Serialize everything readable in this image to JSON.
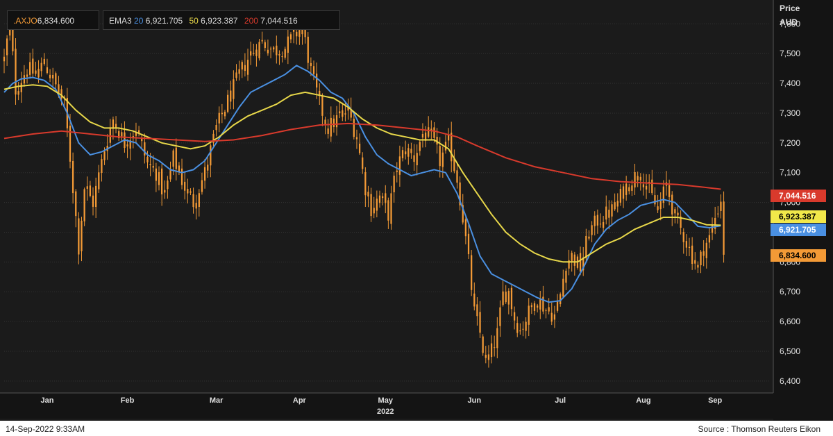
{
  "legend": {
    "ticker": ".AXJO",
    "ticker_value": "6,834.600",
    "ema_label": "EMA3",
    "periods": [
      {
        "period": "20",
        "value": "6,921.705",
        "color": "#4a90e2"
      },
      {
        "period": "50",
        "value": "6,923.387",
        "color": "#e8d84a"
      },
      {
        "period": "200",
        "value": "7,044.516",
        "color": "#d93a2c"
      }
    ]
  },
  "axis": {
    "title": "Price",
    "unit": "AUD"
  },
  "footer": {
    "timestamp": "14-Sep-2022 9:33AM",
    "source": "Source : Thomson Reuters Eikon"
  },
  "chart_data": {
    "type": "candlestick",
    "x_range": [
      0,
      262
    ],
    "y_range": [
      6360,
      7680
    ],
    "y_ticks": [
      {
        "value": 6400,
        "label": "6,400"
      },
      {
        "value": 6500,
        "label": "6,500"
      },
      {
        "value": 6600,
        "label": "6,600"
      },
      {
        "value": 6700,
        "label": "6,700"
      },
      {
        "value": 6800,
        "label": "6,800"
      },
      {
        "value": 6900,
        "label": "6,900"
      },
      {
        "value": 7000,
        "label": "7,000"
      },
      {
        "value": 7100,
        "label": "7,100"
      },
      {
        "value": 7200,
        "label": "7,200"
      },
      {
        "value": 7300,
        "label": "7,300"
      },
      {
        "value": 7400,
        "label": "7,400"
      },
      {
        "value": 7500,
        "label": "7,500"
      },
      {
        "value": 7600,
        "label": "7,600"
      }
    ],
    "x_ticks": [
      {
        "label": "Jan",
        "x": 15
      },
      {
        "label": "Feb",
        "x": 43
      },
      {
        "label": "Mar",
        "x": 74
      },
      {
        "label": "Apr",
        "x": 103
      },
      {
        "label": "May",
        "x": 133
      },
      {
        "label": "Jun",
        "x": 164
      },
      {
        "label": "Jul",
        "x": 194
      },
      {
        "label": "Aug",
        "x": 223
      },
      {
        "label": "Sep",
        "x": 248
      }
    ],
    "year_label": "2022",
    "price_anchors": [
      [
        0,
        7480
      ],
      [
        2,
        7600
      ],
      [
        4,
        7380
      ],
      [
        8,
        7450
      ],
      [
        11,
        7430
      ],
      [
        14,
        7470
      ],
      [
        18,
        7390
      ],
      [
        21,
        7330
      ],
      [
        23,
        7150
      ],
      [
        26,
        6850
      ],
      [
        28,
        7050
      ],
      [
        31,
        7000
      ],
      [
        35,
        7180
      ],
      [
        38,
        7280
      ],
      [
        42,
        7200
      ],
      [
        46,
        7250
      ],
      [
        50,
        7130
      ],
      [
        53,
        7100
      ],
      [
        56,
        7020
      ],
      [
        59,
        7150
      ],
      [
        63,
        7050
      ],
      [
        66,
        7000
      ],
      [
        70,
        7100
      ],
      [
        74,
        7250
      ],
      [
        78,
        7340
      ],
      [
        82,
        7430
      ],
      [
        86,
        7500
      ],
      [
        90,
        7540
      ],
      [
        94,
        7510
      ],
      [
        98,
        7520
      ],
      [
        101,
        7560
      ],
      [
        104,
        7590
      ],
      [
        107,
        7440
      ],
      [
        110,
        7330
      ],
      [
        113,
        7250
      ],
      [
        116,
        7280
      ],
      [
        120,
        7310
      ],
      [
        123,
        7220
      ],
      [
        126,
        7050
      ],
      [
        128,
        6980
      ],
      [
        131,
        7020
      ],
      [
        134,
        6960
      ],
      [
        137,
        7120
      ],
      [
        140,
        7180
      ],
      [
        143,
        7150
      ],
      [
        146,
        7230
      ],
      [
        149,
        7220
      ],
      [
        152,
        7140
      ],
      [
        155,
        7200
      ],
      [
        158,
        7080
      ],
      [
        160,
        6950
      ],
      [
        162,
        6800
      ],
      [
        164,
        6630
      ],
      [
        166,
        6560
      ],
      [
        168,
        6460
      ],
      [
        170,
        6500
      ],
      [
        172,
        6560
      ],
      [
        174,
        6690
      ],
      [
        176,
        6700
      ],
      [
        178,
        6610
      ],
      [
        180,
        6570
      ],
      [
        183,
        6630
      ],
      [
        186,
        6680
      ],
      [
        189,
        6640
      ],
      [
        192,
        6620
      ],
      [
        194,
        6690
      ],
      [
        196,
        6800
      ],
      [
        198,
        6820
      ],
      [
        201,
        6780
      ],
      [
        204,
        6900
      ],
      [
        207,
        6940
      ],
      [
        210,
        6960
      ],
      [
        213,
        6980
      ],
      [
        216,
        7040
      ],
      [
        219,
        7080
      ],
      [
        222,
        7100
      ],
      [
        225,
        7040
      ],
      [
        228,
        6970
      ],
      [
        231,
        7060
      ],
      [
        234,
        6950
      ],
      [
        237,
        6890
      ],
      [
        240,
        6820
      ],
      [
        242,
        6780
      ],
      [
        244,
        6850
      ],
      [
        246,
        6880
      ],
      [
        248,
        6950
      ],
      [
        250,
        7010
      ],
      [
        251,
        6834.6
      ]
    ],
    "series": [
      {
        "name": "20",
        "color": "#4a90e2",
        "points": [
          [
            0,
            7370
          ],
          [
            3,
            7400
          ],
          [
            6,
            7415
          ],
          [
            10,
            7420
          ],
          [
            14,
            7410
          ],
          [
            18,
            7380
          ],
          [
            22,
            7300
          ],
          [
            26,
            7200
          ],
          [
            30,
            7160
          ],
          [
            34,
            7170
          ],
          [
            38,
            7190
          ],
          [
            42,
            7210
          ],
          [
            46,
            7200
          ],
          [
            50,
            7160
          ],
          [
            54,
            7140
          ],
          [
            58,
            7110
          ],
          [
            62,
            7100
          ],
          [
            66,
            7110
          ],
          [
            70,
            7140
          ],
          [
            74,
            7200
          ],
          [
            78,
            7260
          ],
          [
            82,
            7320
          ],
          [
            86,
            7370
          ],
          [
            90,
            7390
          ],
          [
            94,
            7410
          ],
          [
            98,
            7430
          ],
          [
            102,
            7460
          ],
          [
            106,
            7440
          ],
          [
            110,
            7410
          ],
          [
            114,
            7370
          ],
          [
            118,
            7350
          ],
          [
            122,
            7300
          ],
          [
            126,
            7220
          ],
          [
            130,
            7160
          ],
          [
            134,
            7130
          ],
          [
            138,
            7110
          ],
          [
            142,
            7090
          ],
          [
            146,
            7100
          ],
          [
            150,
            7110
          ],
          [
            154,
            7100
          ],
          [
            158,
            7030
          ],
          [
            162,
            6930
          ],
          [
            166,
            6820
          ],
          [
            170,
            6760
          ],
          [
            174,
            6740
          ],
          [
            178,
            6720
          ],
          [
            182,
            6700
          ],
          [
            186,
            6680
          ],
          [
            190,
            6665
          ],
          [
            194,
            6670
          ],
          [
            198,
            6710
          ],
          [
            202,
            6780
          ],
          [
            206,
            6860
          ],
          [
            210,
            6910
          ],
          [
            214,
            6940
          ],
          [
            218,
            6960
          ],
          [
            222,
            6990
          ],
          [
            226,
            7000
          ],
          [
            230,
            7010
          ],
          [
            234,
            7000
          ],
          [
            238,
            6960
          ],
          [
            242,
            6920
          ],
          [
            246,
            6915
          ],
          [
            250,
            6921.705
          ]
        ]
      },
      {
        "name": "50",
        "color": "#e8d84a",
        "points": [
          [
            0,
            7380
          ],
          [
            5,
            7390
          ],
          [
            10,
            7395
          ],
          [
            15,
            7390
          ],
          [
            20,
            7360
          ],
          [
            25,
            7310
          ],
          [
            30,
            7270
          ],
          [
            35,
            7250
          ],
          [
            40,
            7250
          ],
          [
            45,
            7240
          ],
          [
            50,
            7220
          ],
          [
            55,
            7200
          ],
          [
            60,
            7190
          ],
          [
            65,
            7180
          ],
          [
            70,
            7190
          ],
          [
            75,
            7220
          ],
          [
            80,
            7260
          ],
          [
            85,
            7290
          ],
          [
            90,
            7310
          ],
          [
            95,
            7330
          ],
          [
            100,
            7360
          ],
          [
            105,
            7370
          ],
          [
            110,
            7360
          ],
          [
            115,
            7350
          ],
          [
            120,
            7320
          ],
          [
            125,
            7280
          ],
          [
            130,
            7250
          ],
          [
            135,
            7230
          ],
          [
            140,
            7220
          ],
          [
            145,
            7210
          ],
          [
            150,
            7210
          ],
          [
            155,
            7180
          ],
          [
            160,
            7100
          ],
          [
            165,
            7030
          ],
          [
            170,
            6960
          ],
          [
            175,
            6900
          ],
          [
            180,
            6860
          ],
          [
            185,
            6830
          ],
          [
            190,
            6810
          ],
          [
            195,
            6800
          ],
          [
            200,
            6800
          ],
          [
            205,
            6830
          ],
          [
            210,
            6860
          ],
          [
            215,
            6880
          ],
          [
            220,
            6910
          ],
          [
            225,
            6930
          ],
          [
            230,
            6950
          ],
          [
            235,
            6950
          ],
          [
            240,
            6940
          ],
          [
            245,
            6925
          ],
          [
            250,
            6923.387
          ]
        ]
      },
      {
        "name": "200",
        "color": "#d93a2c",
        "points": [
          [
            0,
            7215
          ],
          [
            10,
            7230
          ],
          [
            20,
            7240
          ],
          [
            30,
            7230
          ],
          [
            40,
            7220
          ],
          [
            50,
            7215
          ],
          [
            60,
            7210
          ],
          [
            70,
            7205
          ],
          [
            80,
            7210
          ],
          [
            90,
            7225
          ],
          [
            100,
            7245
          ],
          [
            110,
            7260
          ],
          [
            120,
            7265
          ],
          [
            130,
            7260
          ],
          [
            140,
            7250
          ],
          [
            150,
            7240
          ],
          [
            158,
            7220
          ],
          [
            165,
            7190
          ],
          [
            175,
            7150
          ],
          [
            185,
            7120
          ],
          [
            195,
            7100
          ],
          [
            205,
            7080
          ],
          [
            215,
            7070
          ],
          [
            225,
            7065
          ],
          [
            235,
            7060
          ],
          [
            245,
            7050
          ],
          [
            250,
            7044.516
          ]
        ]
      }
    ],
    "last_values": [
      {
        "label": "7,044.516",
        "value": 7044.516,
        "color": "#d93a2c",
        "text_color": "#ffffff"
      },
      {
        "label": "6,923.387",
        "value": 6923.387,
        "color": "#f2e84a",
        "text_color": "#000000"
      },
      {
        "label": "6,921.705",
        "value": 6921.705,
        "color": "#4a90e2",
        "text_color": "#ffffff"
      },
      {
        "label": "6,834.600",
        "value": 6834.6,
        "color": "#f39a36",
        "text_color": "#000000"
      }
    ],
    "candle_color": "#f39a36"
  }
}
